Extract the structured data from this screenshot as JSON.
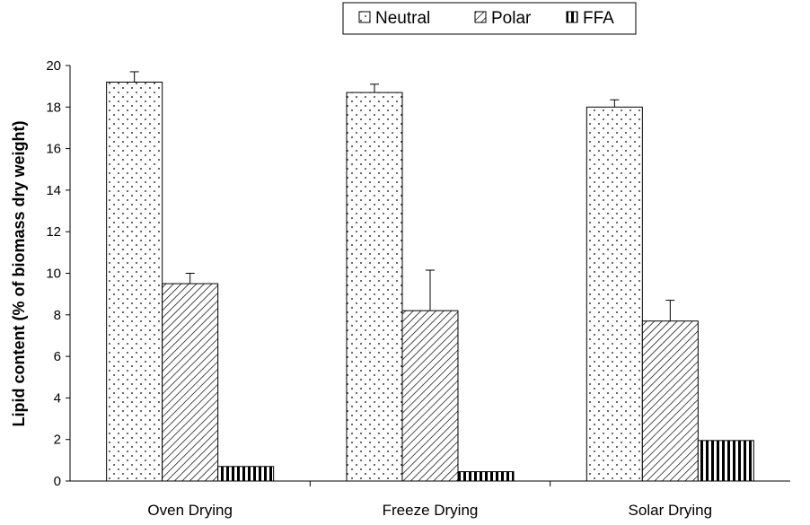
{
  "chart_data": {
    "type": "bar",
    "title": "",
    "xlabel": "",
    "ylabel": "Lipid content (% of biomass dry weight)",
    "ylim": [
      0,
      20
    ],
    "yticks": [
      0,
      2,
      4,
      6,
      8,
      10,
      12,
      14,
      16,
      18,
      20
    ],
    "categories": [
      "Oven Drying",
      "Freeze Drying",
      "Solar Drying"
    ],
    "series": [
      {
        "name": "Neutral",
        "pattern": "dots",
        "values": [
          19.2,
          18.7,
          18.0
        ],
        "errors": [
          0.5,
          0.4,
          0.35
        ]
      },
      {
        "name": "Polar",
        "pattern": "diagonal",
        "values": [
          9.5,
          8.2,
          7.7
        ],
        "errors": [
          0.5,
          1.95,
          1.0
        ]
      },
      {
        "name": "FFA",
        "pattern": "vertical",
        "values": [
          0.7,
          0.45,
          1.95
        ],
        "errors": [
          0,
          0,
          0
        ]
      }
    ],
    "legend_position": "top-center",
    "grid": false,
    "colors": {
      "bar_fill": "#ffffff",
      "pattern": "#000000",
      "stroke": "#000000"
    }
  }
}
